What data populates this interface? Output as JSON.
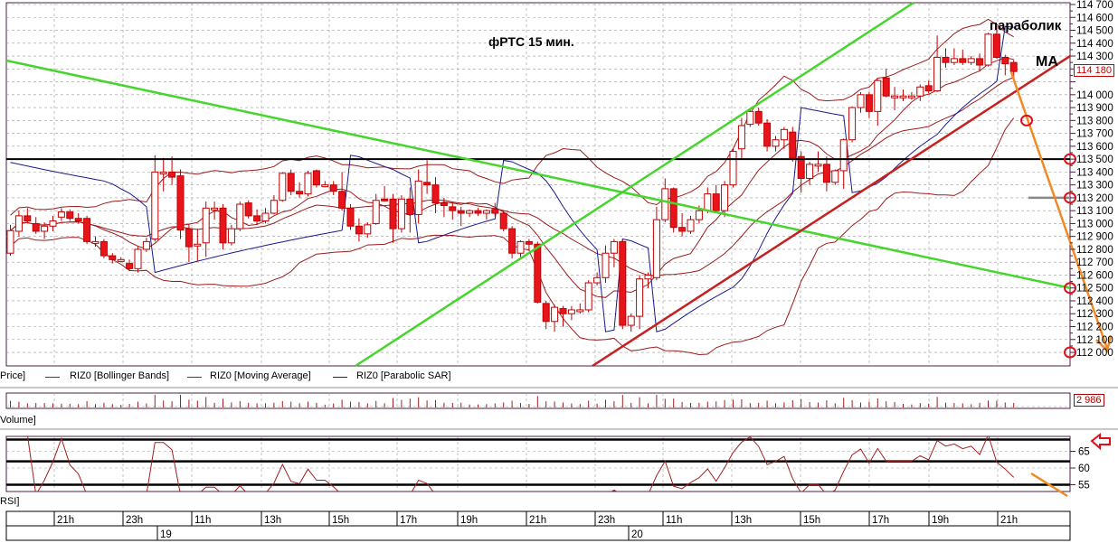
{
  "chart_data": {
    "type": "candlestick",
    "title": "фРТС   15 мин.",
    "instrument": "RIZ0",
    "price_axis": {
      "min": 112000,
      "max": 114700,
      "step": 100,
      "current_price_label": "114 180"
    },
    "time_axis": {
      "hour_labels": [
        "21h",
        "23h",
        "11h",
        "13h",
        "15h",
        "17h",
        "19h",
        "21h",
        "23h",
        "11h",
        "13h",
        "15h",
        "17h",
        "19h",
        "21h"
      ],
      "date_labels": [
        "19",
        "20"
      ]
    },
    "grid": true,
    "candles": [
      [
        112770,
        112990,
        112750,
        112945
      ],
      [
        112940,
        113100,
        112900,
        113060
      ],
      [
        113060,
        113120,
        113000,
        113020
      ],
      [
        113000,
        113050,
        112920,
        112940
      ],
      [
        112940,
        113010,
        112880,
        112980
      ],
      [
        112980,
        113060,
        112940,
        113020
      ],
      [
        113050,
        113120,
        113020,
        113090
      ],
      [
        113090,
        113110,
        113020,
        113040
      ],
      [
        113040,
        113080,
        113000,
        113020
      ],
      [
        113040,
        113060,
        112840,
        112860
      ],
      [
        112860,
        112900,
        112820,
        112860
      ],
      [
        112860,
        112880,
        112730,
        112750
      ],
      [
        112750,
        112770,
        112690,
        112720
      ],
      [
        112720,
        112740,
        112700,
        112720
      ],
      [
        112690,
        112720,
        112630,
        112650
      ],
      [
        112650,
        112820,
        112620,
        112800
      ],
      [
        112800,
        112890,
        112780,
        112860
      ],
      [
        112880,
        113530,
        112860,
        113400
      ],
      [
        113400,
        113510,
        113250,
        113400
      ],
      [
        113400,
        113520,
        113300,
        113360
      ],
      [
        113370,
        113420,
        112880,
        112950
      ],
      [
        112960,
        113000,
        112700,
        112820
      ],
      [
        112830,
        112960,
        112710,
        112840
      ],
      [
        112850,
        113170,
        112740,
        113120
      ],
      [
        113110,
        113170,
        113030,
        113120
      ],
      [
        113120,
        113150,
        112800,
        112850
      ],
      [
        112850,
        112990,
        112830,
        112960
      ],
      [
        112960,
        113170,
        112940,
        113150
      ],
      [
        113160,
        113180,
        113040,
        113060
      ],
      [
        113060,
        113110,
        112990,
        113020
      ],
      [
        113020,
        113120,
        113000,
        113080
      ],
      [
        113080,
        113220,
        113070,
        113180
      ],
      [
        113180,
        113400,
        113170,
        113390
      ],
      [
        113390,
        113420,
        113220,
        113250
      ],
      [
        113250,
        113320,
        113200,
        113230
      ],
      [
        113230,
        113410,
        113210,
        113390
      ],
      [
        113410,
        113420,
        113280,
        113300
      ],
      [
        113300,
        113330,
        113280,
        113300
      ],
      [
        113300,
        113330,
        113220,
        113250
      ],
      [
        113250,
        113400,
        113100,
        113120
      ],
      [
        113120,
        113150,
        112950,
        112980
      ],
      [
        112980,
        113040,
        112860,
        112920
      ],
      [
        112920,
        113010,
        112890,
        112990
      ],
      [
        113000,
        113230,
        112990,
        113180
      ],
      [
        113190,
        113290,
        113170,
        113180
      ],
      [
        113190,
        113230,
        112850,
        112960
      ],
      [
        112960,
        113220,
        112930,
        113190
      ],
      [
        113190,
        113280,
        112930,
        113070
      ],
      [
        113070,
        113420,
        113000,
        113330
      ],
      [
        113320,
        113490,
        113230,
        113300
      ],
      [
        113300,
        113360,
        113080,
        113160
      ],
      [
        113160,
        113200,
        113050,
        113140
      ],
      [
        113130,
        113170,
        113030,
        113100
      ],
      [
        113100,
        113130,
        112980,
        113080
      ],
      [
        113080,
        113110,
        113050,
        113100
      ],
      [
        113100,
        113120,
        113060,
        113080
      ],
      [
        113080,
        113110,
        113030,
        113100
      ],
      [
        113110,
        113160,
        113050,
        113080
      ],
      [
        113080,
        113100,
        112940,
        112960
      ],
      [
        112960,
        112980,
        112730,
        112770
      ],
      [
        112770,
        112870,
        112740,
        112860
      ],
      [
        112860,
        112880,
        112790,
        112840
      ],
      [
        112840,
        112860,
        112380,
        112390
      ],
      [
        112380,
        112400,
        112180,
        112240
      ],
      [
        112240,
        112370,
        112160,
        112350
      ],
      [
        112340,
        112360,
        112200,
        112300
      ],
      [
        112300,
        112360,
        112250,
        112330
      ],
      [
        112330,
        112380,
        112300,
        112330
      ],
      [
        112330,
        112560,
        112310,
        112540
      ],
      [
        112540,
        112620,
        112520,
        112580
      ],
      [
        112580,
        112830,
        112540,
        112770
      ],
      [
        112770,
        112880,
        112660,
        112860
      ],
      [
        112860,
        112880,
        112180,
        112210
      ],
      [
        112210,
        112300,
        112160,
        112280
      ],
      [
        112280,
        112600,
        112180,
        112570
      ],
      [
        112570,
        112620,
        112500,
        112600
      ],
      [
        112580,
        113130,
        112560,
        113030
      ],
      [
        113030,
        113350,
        113010,
        113270
      ],
      [
        113270,
        113280,
        112930,
        112970
      ],
      [
        112970,
        113080,
        112900,
        112940
      ],
      [
        112940,
        113060,
        112920,
        113030
      ],
      [
        113030,
        113140,
        113000,
        113100
      ],
      [
        113100,
        113280,
        113080,
        113230
      ],
      [
        113230,
        113300,
        113090,
        113100
      ],
      [
        113100,
        113330,
        113050,
        113300
      ],
      [
        113300,
        113580,
        113280,
        113560
      ],
      [
        113580,
        113820,
        113500,
        113760
      ],
      [
        113770,
        113880,
        113750,
        113870
      ],
      [
        113870,
        113900,
        113760,
        113780
      ],
      [
        113780,
        113810,
        113560,
        113600
      ],
      [
        113600,
        113680,
        113560,
        113650
      ],
      [
        113650,
        113750,
        113580,
        113730
      ],
      [
        113710,
        113750,
        113480,
        113510
      ],
      [
        113520,
        113560,
        113240,
        113350
      ],
      [
        113350,
        113480,
        113300,
        113460
      ],
      [
        113460,
        113560,
        113400,
        113460
      ],
      [
        113460,
        113520,
        113250,
        113320
      ],
      [
        113320,
        113420,
        113300,
        113410
      ],
      [
        113410,
        113660,
        113270,
        113650
      ],
      [
        113650,
        113910,
        113630,
        113900
      ],
      [
        113900,
        114020,
        113860,
        114000
      ],
      [
        114000,
        114020,
        113820,
        113870
      ],
      [
        113870,
        114120,
        113760,
        114110
      ],
      [
        114130,
        114200,
        113980,
        113990
      ],
      [
        113990,
        114060,
        113880,
        113990
      ],
      [
        113990,
        114040,
        113950,
        113990
      ],
      [
        113990,
        114020,
        113960,
        113990
      ],
      [
        113990,
        114080,
        113950,
        114060
      ],
      [
        114070,
        114110,
        114010,
        114030
      ],
      [
        114030,
        114460,
        114020,
        114290
      ],
      [
        114290,
        114360,
        114210,
        114250
      ],
      [
        114250,
        114360,
        114230,
        114280
      ],
      [
        114280,
        114350,
        114230,
        114250
      ],
      [
        114250,
        114300,
        114230,
        114280
      ],
      [
        114280,
        114320,
        114180,
        114230
      ],
      [
        114230,
        114480,
        114220,
        114470
      ],
      [
        114470,
        114530,
        114280,
        114290
      ],
      [
        114290,
        114310,
        114150,
        114240
      ],
      [
        114250,
        114270,
        114130,
        114180
      ]
    ],
    "horizontal_levels": [
      113500
    ],
    "volume_axis_label": "2 986",
    "rsi_axis": {
      "ticks": [
        55,
        60,
        65
      ],
      "levels": [
        68.5,
        62,
        55
      ]
    },
    "colors": {
      "up": "#ffffff",
      "down": "#e8141c",
      "candle_outline": "#c00000",
      "indicator": "#9b1c1c",
      "sar": "#1a1a8c",
      "trend_green": "#44d62c",
      "trend_red": "#c62020",
      "forecast": "#f08a24"
    }
  },
  "legend": {
    "price_label": "Price]",
    "items": [
      {
        "label": "RIZ0 [Bollinger Bands]",
        "color": "#9b1c1c"
      },
      {
        "label": "RIZ0 [Moving Average]",
        "color": "#9b1c1c"
      },
      {
        "label": "RIZ0 [Parabolic SAR]",
        "color": "#1a1a8c"
      }
    ]
  },
  "panes": {
    "volume_label": "Volume]",
    "rsi_label": "RSI]"
  },
  "annotations": {
    "title": "фРТС   15 мин.",
    "parabolic": "параболик",
    "ma": "МА"
  }
}
